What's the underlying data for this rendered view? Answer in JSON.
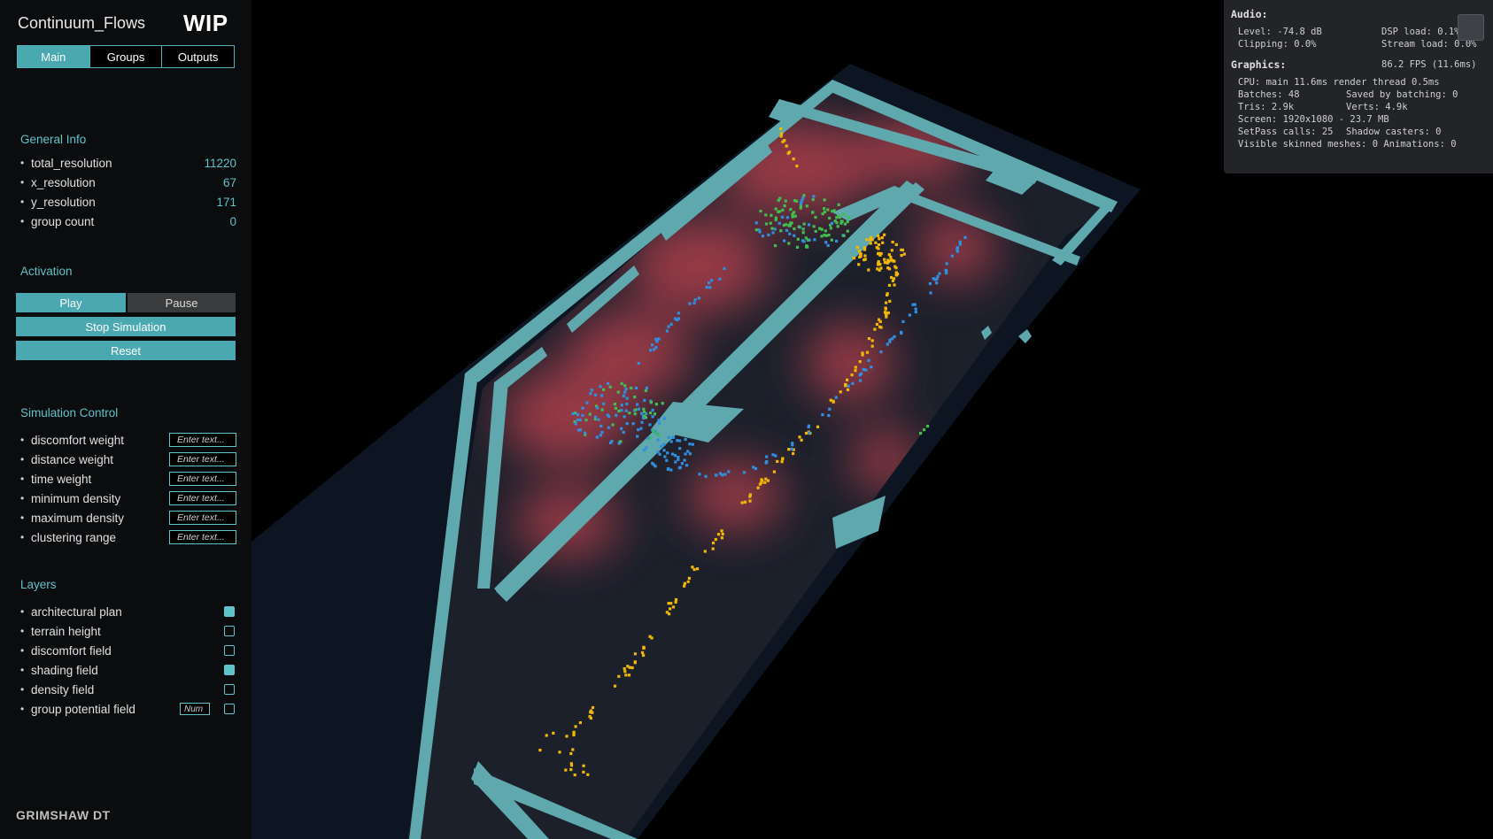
{
  "app": {
    "title": "Continuum_Flows",
    "badge": "WIP"
  },
  "tabs": [
    {
      "label": "Main",
      "active": true
    },
    {
      "label": "Groups",
      "active": false
    },
    {
      "label": "Outputs",
      "active": false
    }
  ],
  "general_info": {
    "heading": "General Info",
    "items": [
      {
        "label": "total_resolution",
        "value": "11220"
      },
      {
        "label": "x_resolution",
        "value": "67"
      },
      {
        "label": "y_resolution",
        "value": "171"
      },
      {
        "label": "group count",
        "value": "0"
      }
    ]
  },
  "activation": {
    "heading": "Activation",
    "play_label": "Play",
    "pause_label": "Pause",
    "stop_label": "Stop Simulation",
    "reset_label": "Reset"
  },
  "simulation_control": {
    "heading": "Simulation Control",
    "placeholder": "Enter text...",
    "items": [
      {
        "label": "discomfort weight"
      },
      {
        "label": "distance weight"
      },
      {
        "label": "time weight"
      },
      {
        "label": "minimum density"
      },
      {
        "label": "maximum density"
      },
      {
        "label": "clustering range"
      }
    ]
  },
  "layers": {
    "heading": "Layers",
    "num_placeholder": "Num",
    "items": [
      {
        "label": "architectural plan",
        "checked": true
      },
      {
        "label": "terrain height",
        "checked": false
      },
      {
        "label": "discomfort field",
        "checked": false
      },
      {
        "label": "shading field",
        "checked": true
      },
      {
        "label": "density field",
        "checked": false
      },
      {
        "label": "group potential field",
        "checked": false
      }
    ]
  },
  "footer": {
    "brand": "GRIMSHAW DT"
  },
  "stats": {
    "audio": {
      "heading": "Audio:",
      "level": "Level: -74.8 dB",
      "clipping": "Clipping: 0.0%",
      "dsp": "DSP load: 0.1%",
      "stream": "Stream load: 0.0%"
    },
    "graphics": {
      "heading": "Graphics:",
      "fps": "86.2 FPS (11.6ms)",
      "cpu": "CPU: main 11.6ms  render thread 0.5ms",
      "batches": "Batches: 48",
      "saved_batching": "Saved by batching: 0",
      "tris": "Tris: 2.9k",
      "verts": "Verts: 4.9k",
      "screen": "Screen: 1920x1080 - 23.7 MB",
      "setpass": "SetPass calls: 25",
      "shadow": "Shadow casters: 0",
      "skinned": "Visible skinned meshes: 0  Animations: 0"
    }
  },
  "colors": {
    "accent": "#4aa9b0",
    "wall": "#5fa8ae",
    "floor": "#1a1f2a",
    "heat": "#c0424f",
    "agent_yellow": "#f2b705",
    "agent_blue": "#2f8fe0",
    "agent_green": "#3fbf4f"
  }
}
